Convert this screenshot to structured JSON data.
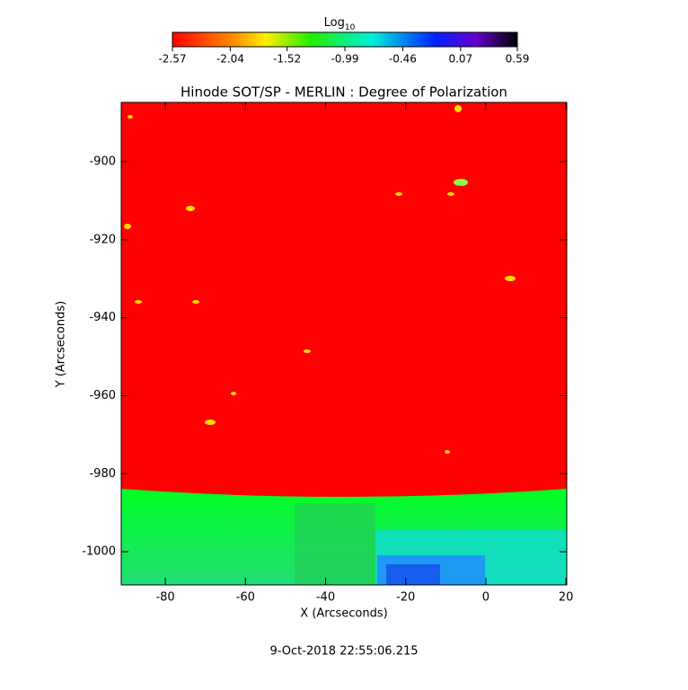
{
  "chart_data": {
    "type": "image",
    "title": "Hinode SOT/SP - MERLIN : Degree of Polarization",
    "xlabel": "X (Arcseconds)",
    "ylabel": "Y (Arcseconds)",
    "xlim": [
      -91,
      20.2
    ],
    "xticks": [
      -80,
      -60,
      -40,
      -20,
      0,
      20
    ],
    "ylim": [
      -1008.5,
      -884.8
    ],
    "yticks": [
      -1000,
      -980,
      -960,
      -940,
      -920,
      -900
    ],
    "colorbar": {
      "label": "Log",
      "label_subscript": "10",
      "lim": [
        -2.57,
        0.59
      ],
      "ticks": [
        -2.57,
        -2.04,
        -1.52,
        -0.99,
        -0.46,
        0.07,
        0.59
      ]
    },
    "footer": "9-Oct-2018 22:55:06.215"
  }
}
